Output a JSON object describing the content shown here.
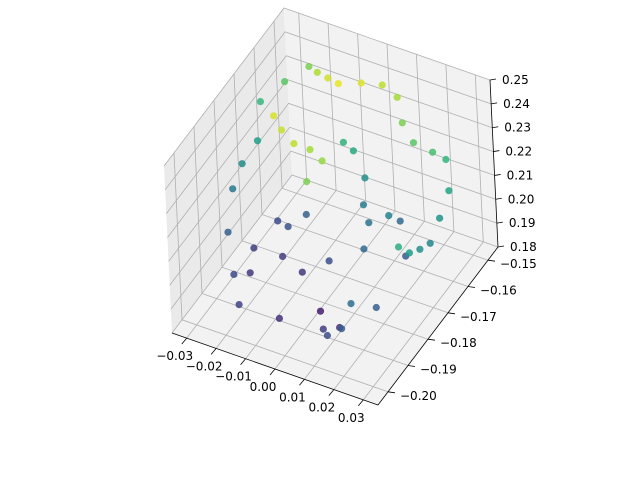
{
  "chart_data": {
    "type": "scatter",
    "projection": "3d",
    "title": "",
    "xlabel": "",
    "ylabel": "",
    "zlabel": "",
    "grid": true,
    "legend": "none",
    "colormap": "viridis",
    "xlim": [
      -0.035,
      0.035
    ],
    "ylim": [
      -0.205,
      -0.145
    ],
    "zlim": [
      0.18,
      0.25
    ],
    "x_ticks": [
      -0.03,
      -0.02,
      -0.01,
      0.0,
      0.01,
      0.02,
      0.03
    ],
    "x_tick_labels": [
      "−0.03",
      "−0.02",
      "−0.01",
      "0.00",
      "0.01",
      "0.02",
      "0.03"
    ],
    "y_ticks": [
      -0.2,
      -0.19,
      -0.18,
      -0.17,
      -0.16,
      -0.15
    ],
    "y_tick_labels": [
      "−0.20",
      "−0.19",
      "−0.18",
      "−0.17",
      "−0.16",
      "−0.15"
    ],
    "z_ticks": [
      0.18,
      0.19,
      0.2,
      0.21,
      0.22,
      0.23,
      0.24,
      0.25
    ],
    "z_tick_labels": [
      "0.18",
      "0.19",
      "0.20",
      "0.21",
      "0.22",
      "0.23",
      "0.24",
      "0.25"
    ],
    "color_by": "z",
    "points": [
      {
        "x": 0.03,
        "y": -0.185,
        "z": 0.222,
        "c": 0.62
      },
      {
        "x": 0.03,
        "y": -0.18,
        "z": 0.214,
        "c": 0.55
      },
      {
        "x": 0.03,
        "y": -0.175,
        "z": 0.21,
        "c": 0.5
      },
      {
        "x": 0.03,
        "y": -0.17,
        "z": 0.207,
        "c": 0.46
      },
      {
        "x": 0.03,
        "y": -0.165,
        "z": 0.212,
        "c": 0.52
      },
      {
        "x": 0.03,
        "y": -0.16,
        "z": 0.218,
        "c": 0.58
      },
      {
        "x": 0.02,
        "y": -0.195,
        "z": 0.205,
        "c": 0.36
      },
      {
        "x": 0.025,
        "y": -0.19,
        "z": 0.2,
        "c": 0.3
      },
      {
        "x": 0.02,
        "y": -0.2,
        "z": 0.2,
        "c": 0.28
      },
      {
        "x": 0.015,
        "y": -0.2,
        "z": 0.195,
        "c": 0.24
      },
      {
        "x": 0.01,
        "y": -0.195,
        "z": 0.19,
        "c": 0.18
      },
      {
        "x": 0.012,
        "y": -0.19,
        "z": 0.186,
        "c": 0.14
      },
      {
        "x": 0.002,
        "y": -0.185,
        "z": 0.183,
        "c": 0.08
      },
      {
        "x": -0.005,
        "y": -0.195,
        "z": 0.188,
        "c": 0.14
      },
      {
        "x": -0.015,
        "y": -0.2,
        "z": 0.195,
        "c": 0.2
      },
      {
        "x": -0.02,
        "y": -0.195,
        "z": 0.2,
        "c": 0.22
      },
      {
        "x": -0.025,
        "y": -0.19,
        "z": 0.21,
        "c": 0.3
      },
      {
        "x": -0.03,
        "y": -0.18,
        "z": 0.215,
        "c": 0.4
      },
      {
        "x": -0.03,
        "y": -0.175,
        "z": 0.22,
        "c": 0.48
      },
      {
        "x": -0.028,
        "y": -0.17,
        "z": 0.225,
        "c": 0.56
      },
      {
        "x": -0.03,
        "y": -0.165,
        "z": 0.235,
        "c": 0.66
      },
      {
        "x": -0.025,
        "y": -0.16,
        "z": 0.24,
        "c": 0.74
      },
      {
        "x": -0.02,
        "y": -0.155,
        "z": 0.243,
        "c": 0.8
      },
      {
        "x": -0.015,
        "y": -0.158,
        "z": 0.246,
        "c": 0.88
      },
      {
        "x": -0.01,
        "y": -0.16,
        "z": 0.248,
        "c": 0.93
      },
      {
        "x": -0.005,
        "y": -0.162,
        "z": 0.25,
        "c": 0.97
      },
      {
        "x": 0.0,
        "y": -0.158,
        "z": 0.248,
        "c": 0.95
      },
      {
        "x": 0.005,
        "y": -0.155,
        "z": 0.246,
        "c": 0.9
      },
      {
        "x": 0.01,
        "y": -0.155,
        "z": 0.243,
        "c": 0.86
      },
      {
        "x": 0.015,
        "y": -0.16,
        "z": 0.24,
        "c": 0.8
      },
      {
        "x": 0.02,
        "y": -0.162,
        "z": 0.236,
        "c": 0.74
      },
      {
        "x": 0.025,
        "y": -0.16,
        "z": 0.232,
        "c": 0.7
      },
      {
        "x": 0.028,
        "y": -0.158,
        "z": 0.228,
        "c": 0.66
      },
      {
        "x": -0.022,
        "y": -0.17,
        "z": 0.238,
        "c": 0.94
      },
      {
        "x": -0.018,
        "y": -0.172,
        "z": 0.236,
        "c": 0.92
      },
      {
        "x": -0.014,
        "y": -0.172,
        "z": 0.232,
        "c": 0.9
      },
      {
        "x": -0.01,
        "y": -0.17,
        "z": 0.229,
        "c": 0.86
      },
      {
        "x": -0.006,
        "y": -0.17,
        "z": 0.226,
        "c": 0.84
      },
      {
        "x": -0.008,
        "y": -0.175,
        "z": 0.222,
        "c": 0.8
      },
      {
        "x": 0.005,
        "y": -0.17,
        "z": 0.235,
        "c": 0.6
      },
      {
        "x": 0.01,
        "y": -0.172,
        "z": 0.228,
        "c": 0.5
      },
      {
        "x": 0.012,
        "y": -0.176,
        "z": 0.222,
        "c": 0.42
      },
      {
        "x": 0.015,
        "y": -0.178,
        "z": 0.218,
        "c": 0.38
      },
      {
        "x": -0.005,
        "y": -0.18,
        "z": 0.215,
        "c": 0.3
      },
      {
        "x": -0.01,
        "y": -0.182,
        "z": 0.21,
        "c": 0.26
      },
      {
        "x": -0.015,
        "y": -0.18,
        "z": 0.208,
        "c": 0.22
      },
      {
        "x": -0.008,
        "y": -0.188,
        "z": 0.205,
        "c": 0.18
      },
      {
        "x": 0.0,
        "y": -0.19,
        "z": 0.204,
        "c": 0.16
      },
      {
        "x": 0.008,
        "y": -0.188,
        "z": 0.21,
        "c": 0.24
      },
      {
        "x": -0.02,
        "y": -0.185,
        "z": 0.2,
        "c": 0.18
      },
      {
        "x": -0.018,
        "y": -0.19,
        "z": 0.196,
        "c": 0.16
      },
      {
        "x": 0.018,
        "y": -0.185,
        "z": 0.216,
        "c": 0.34
      },
      {
        "x": 0.022,
        "y": -0.178,
        "z": 0.224,
        "c": 0.44
      },
      {
        "x": -0.002,
        "y": -0.165,
        "z": 0.23,
        "c": 0.64
      },
      {
        "x": 0.02,
        "y": -0.17,
        "z": 0.212,
        "c": 0.34
      },
      {
        "x": 0.025,
        "y": -0.175,
        "z": 0.205,
        "c": 0.28
      }
    ]
  }
}
